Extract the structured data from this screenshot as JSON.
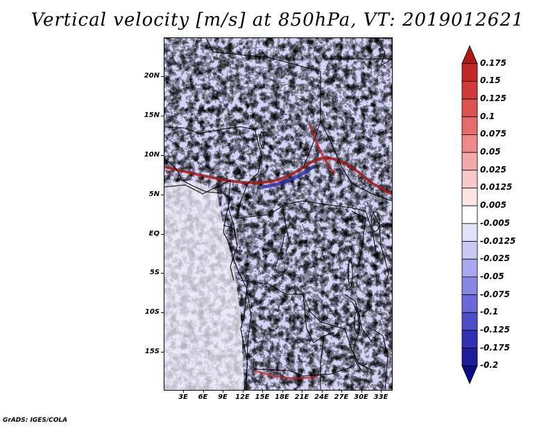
{
  "title": "Vertical velocity [m/s] at 850hPa, VT: 2019012621",
  "footer": "GrADS: IGES/COLA",
  "map": {
    "lat_labels": [
      "20N",
      "15N",
      "10N",
      "5N",
      "EQ",
      "5S",
      "10S",
      "15S"
    ],
    "lon_labels": [
      "3E",
      "6E",
      "9E",
      "12E",
      "15E",
      "18E",
      "21E",
      "24E",
      "27E",
      "30E",
      "33E"
    ]
  },
  "colorbar": {
    "levels": [
      "0.175",
      "0.15",
      "0.125",
      "0.1",
      "0.075",
      "0.05",
      "0.025",
      "0.0125",
      "0.005",
      "-0.005",
      "-0.0125",
      "-0.025",
      "-0.05",
      "-0.075",
      "-0.1",
      "-0.125",
      "-0.175",
      "-0.2"
    ],
    "colors": [
      "#b01818",
      "#c32626",
      "#d03a3a",
      "#dc5252",
      "#e56c6c",
      "#ee8a8a",
      "#f4a9a9",
      "#f9c9c9",
      "#fce5e5",
      "#ffffff",
      "#e2e2fb",
      "#c8c8f5",
      "#a8a8ee",
      "#8888e4",
      "#6a6ad8",
      "#4c4cc8",
      "#3030b4",
      "#1c1c9c",
      "#0c0c80"
    ]
  }
}
